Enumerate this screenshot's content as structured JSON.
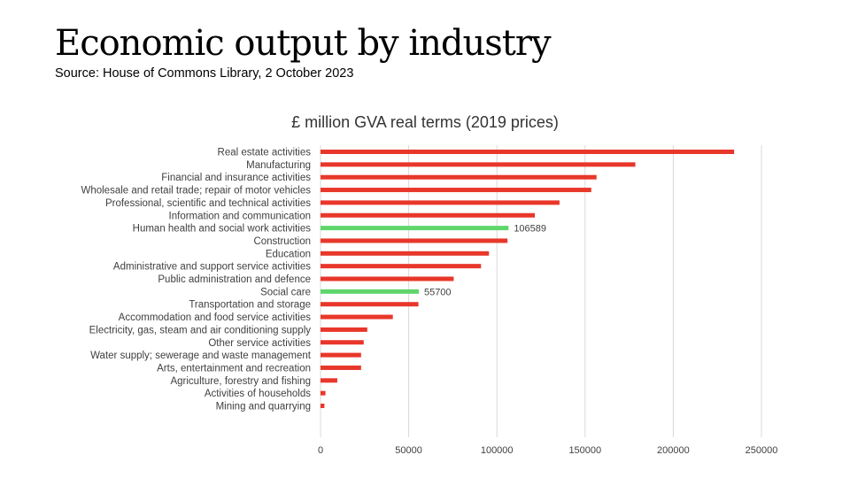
{
  "header": {
    "title": "Economic output by industry",
    "source": "Source: House of Commons Library, 2 October 2023"
  },
  "colors": {
    "default_bar": "#e8372a",
    "highlight_bar": "#5fd66b",
    "grid": "#d9d9d9",
    "text": "#404040"
  },
  "chart_data": {
    "type": "bar",
    "orientation": "horizontal",
    "title": "£ million GVA real terms (2019 prices)",
    "xlabel": "",
    "ylabel": "",
    "xlim": [
      0,
      250000
    ],
    "xticks": [
      "0",
      "50000",
      "100000",
      "150000",
      "200000",
      "250000"
    ],
    "grid": true,
    "categories": [
      "Real estate activities",
      "Manufacturing",
      "Financial and insurance activities",
      "Wholesale and retail trade; repair of motor vehicles",
      "Professional, scientific and technical activities",
      "Information and communication",
      "Human health and social work activities",
      "Construction",
      "Education",
      "Administrative and support service activities",
      "Public administration and defence",
      "Social care",
      "Transportation and storage",
      "Accommodation and food service activities",
      "Electricity, gas, steam and air conditioning supply",
      "Other service activities",
      "Water supply; sewerage and waste management",
      "Arts, entertainment and recreation",
      "Agriculture, forestry and fishing",
      "Activities of households",
      "Mining and quarrying"
    ],
    "values": [
      234500,
      178500,
      156500,
      153500,
      135500,
      121500,
      106589,
      106000,
      95500,
      91000,
      75500,
      55700,
      55500,
      41000,
      26500,
      24500,
      23000,
      23000,
      9500,
      2800,
      2200
    ],
    "highlighted": [
      "Human health and social work activities",
      "Social care"
    ],
    "data_labels": {
      "Human health and social work activities": "106589",
      "Social care": "55700"
    }
  }
}
